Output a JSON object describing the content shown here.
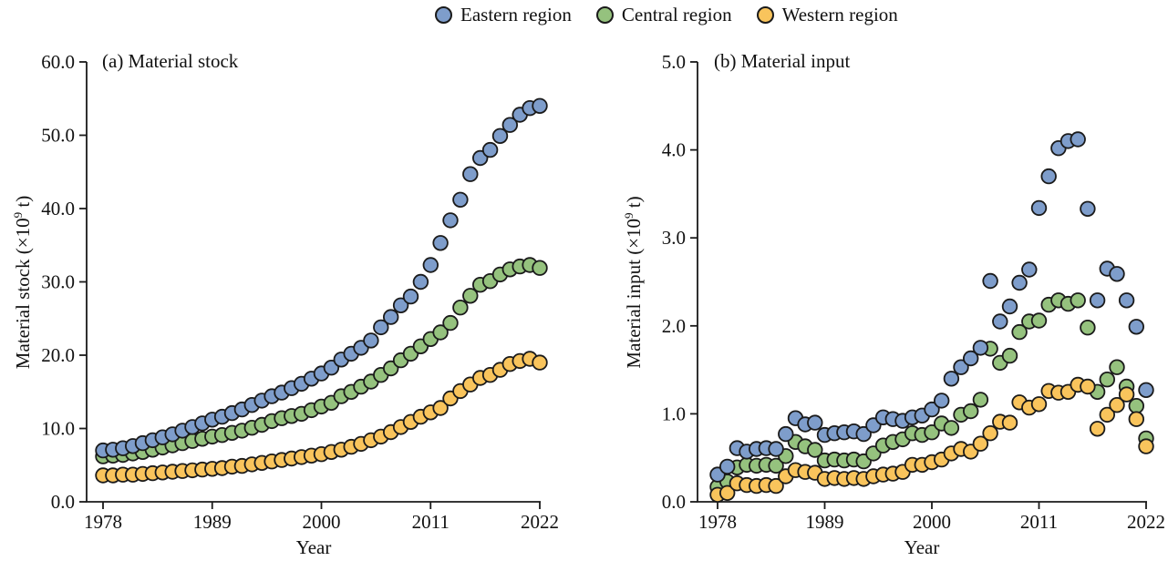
{
  "legend": {
    "items": [
      {
        "label": "Eastern region",
        "color": "#7e9dcb"
      },
      {
        "label": "Central region",
        "color": "#95c27e"
      },
      {
        "label": "Western region",
        "color": "#f9c45c"
      }
    ],
    "marker_outline": "#1a1a1a"
  },
  "chart_data": [
    {
      "type": "scatter",
      "title": "(a) Material stock",
      "ylabel": "Material stock (×10⁹ t)",
      "xlabel": "Year",
      "ylim": [
        0,
        60
      ],
      "yticks": [
        "0.0",
        "10.0",
        "20.0",
        "30.0",
        "40.0",
        "50.0",
        "60.0"
      ],
      "xticks": [
        1978,
        1989,
        2000,
        2011,
        2022
      ],
      "x": [
        1978,
        1979,
        1980,
        1981,
        1982,
        1983,
        1984,
        1985,
        1986,
        1987,
        1988,
        1989,
        1990,
        1991,
        1992,
        1993,
        1994,
        1995,
        1996,
        1997,
        1998,
        1999,
        2000,
        2001,
        2002,
        2003,
        2004,
        2005,
        2006,
        2007,
        2008,
        2009,
        2010,
        2011,
        2012,
        2013,
        2014,
        2015,
        2016,
        2017,
        2018,
        2019,
        2020,
        2021,
        2022
      ],
      "series": [
        {
          "name": "Eastern region",
          "values": [
            7.0,
            7.1,
            7.3,
            7.6,
            8.0,
            8.4,
            8.8,
            9.2,
            9.7,
            10.2,
            10.7,
            11.2,
            11.6,
            12.1,
            12.6,
            13.2,
            13.8,
            14.4,
            14.9,
            15.5,
            16.1,
            16.8,
            17.5,
            18.3,
            19.4,
            20.2,
            21.0,
            22.0,
            23.8,
            25.2,
            26.8,
            28.0,
            30.0,
            32.3,
            35.3,
            38.4,
            41.2,
            44.7,
            46.9,
            48.0,
            49.9,
            51.4,
            52.8,
            53.7,
            54.0
          ]
        },
        {
          "name": "Central region",
          "values": [
            6.2,
            6.3,
            6.4,
            6.6,
            6.8,
            7.1,
            7.4,
            7.7,
            8.0,
            8.3,
            8.6,
            8.9,
            9.1,
            9.4,
            9.7,
            10.1,
            10.5,
            11.0,
            11.4,
            11.7,
            12.0,
            12.5,
            13.0,
            13.5,
            14.4,
            15.0,
            15.7,
            16.4,
            17.3,
            18.2,
            19.3,
            20.2,
            21.2,
            22.2,
            23.1,
            24.4,
            26.5,
            28.1,
            29.6,
            30.1,
            31.0,
            31.7,
            32.1,
            32.3,
            31.9
          ]
        },
        {
          "name": "Western region",
          "values": [
            3.6,
            3.6,
            3.7,
            3.7,
            3.8,
            3.9,
            4.0,
            4.1,
            4.2,
            4.3,
            4.4,
            4.5,
            4.6,
            4.8,
            4.9,
            5.1,
            5.3,
            5.5,
            5.7,
            5.9,
            6.1,
            6.3,
            6.5,
            6.8,
            7.1,
            7.5,
            7.9,
            8.4,
            8.9,
            9.5,
            10.2,
            10.9,
            11.6,
            12.2,
            12.8,
            14.1,
            15.1,
            16.0,
            16.9,
            17.3,
            18.0,
            18.8,
            19.2,
            19.5,
            19.0
          ]
        }
      ]
    },
    {
      "type": "scatter",
      "title": "(b) Material input",
      "ylabel": "Material input (×10⁹ t)",
      "xlabel": "Year",
      "ylim": [
        0,
        5
      ],
      "yticks": [
        "0.0",
        "1.0",
        "2.0",
        "3.0",
        "4.0",
        "5.0"
      ],
      "xticks": [
        1978,
        1989,
        2000,
        2011,
        2022
      ],
      "x": [
        1978,
        1979,
        1980,
        1981,
        1982,
        1983,
        1984,
        1985,
        1986,
        1987,
        1988,
        1989,
        1990,
        1991,
        1992,
        1993,
        1994,
        1995,
        1996,
        1997,
        1998,
        1999,
        2000,
        2001,
        2002,
        2003,
        2004,
        2005,
        2006,
        2007,
        2008,
        2009,
        2010,
        2011,
        2012,
        2013,
        2014,
        2015,
        2016,
        2017,
        2018,
        2019,
        2020,
        2021,
        2022
      ],
      "series": [
        {
          "name": "Eastern region",
          "values": [
            0.31,
            0.4,
            0.61,
            0.57,
            0.6,
            0.61,
            0.6,
            0.77,
            0.95,
            0.88,
            0.9,
            0.76,
            0.78,
            0.79,
            0.8,
            0.77,
            0.87,
            0.96,
            0.94,
            0.92,
            0.96,
            0.98,
            1.05,
            1.15,
            1.4,
            1.53,
            1.63,
            1.75,
            2.51,
            2.05,
            2.22,
            2.49,
            2.64,
            3.34,
            3.7,
            4.02,
            4.1,
            4.12,
            3.33,
            2.29,
            2.65,
            2.59,
            2.29,
            1.99,
            1.27
          ]
        },
        {
          "name": "Central region",
          "values": [
            0.17,
            0.23,
            0.39,
            0.42,
            0.41,
            0.42,
            0.41,
            0.52,
            0.68,
            0.63,
            0.59,
            0.47,
            0.48,
            0.47,
            0.48,
            0.46,
            0.55,
            0.64,
            0.68,
            0.71,
            0.78,
            0.76,
            0.79,
            0.89,
            0.84,
            0.99,
            1.03,
            1.16,
            1.74,
            1.58,
            1.66,
            1.93,
            2.05,
            2.06,
            2.24,
            2.29,
            2.25,
            2.29,
            1.98,
            1.25,
            1.39,
            1.53,
            1.31,
            1.09,
            0.72
          ]
        },
        {
          "name": "Western region",
          "values": [
            0.08,
            0.1,
            0.21,
            0.19,
            0.18,
            0.19,
            0.18,
            0.29,
            0.36,
            0.34,
            0.33,
            0.26,
            0.27,
            0.26,
            0.27,
            0.26,
            0.29,
            0.31,
            0.32,
            0.34,
            0.42,
            0.42,
            0.45,
            0.48,
            0.55,
            0.6,
            0.57,
            0.66,
            0.78,
            0.91,
            0.9,
            1.13,
            1.07,
            1.11,
            1.26,
            1.24,
            1.25,
            1.33,
            1.31,
            0.83,
            0.99,
            1.1,
            1.22,
            0.94,
            0.63
          ]
        }
      ]
    }
  ]
}
